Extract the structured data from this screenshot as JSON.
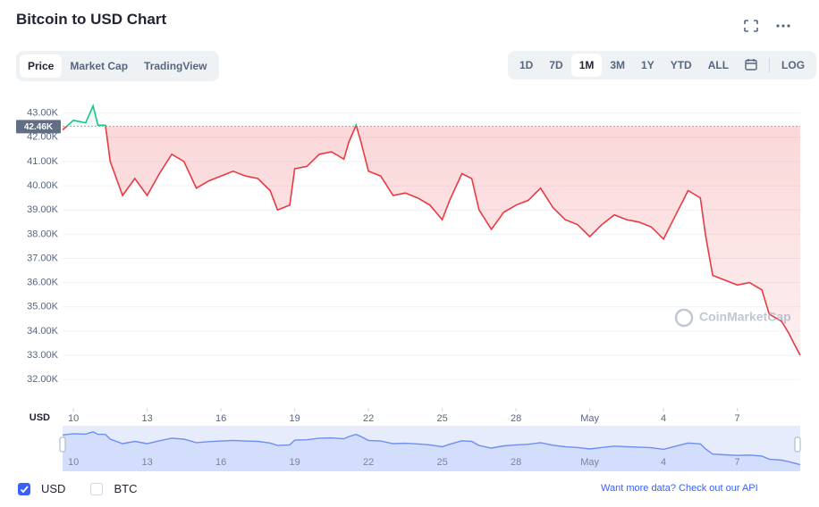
{
  "header": {
    "title": "Bitcoin to USD Chart"
  },
  "tabs": [
    "Price",
    "Market Cap",
    "TradingView"
  ],
  "active_tab": 0,
  "ranges": [
    "1D",
    "7D",
    "1M",
    "3M",
    "1Y",
    "YTD",
    "ALL"
  ],
  "active_range": 2,
  "log_label": "LOG",
  "chart_data": {
    "type": "line",
    "x_axis_label": "USD",
    "watermark": "CoinMarketCap",
    "x": [
      9.56,
      10,
      10.5,
      10.8,
      11,
      11.3,
      11.5,
      12,
      12.5,
      13,
      13.5,
      14,
      14.5,
      15,
      15.5,
      16,
      16.5,
      17,
      17.5,
      18,
      18.3,
      18.8,
      19,
      19.5,
      20,
      20.5,
      21,
      21.2,
      21.5,
      21.7,
      22,
      22.5,
      23,
      23.5,
      24,
      24.5,
      25,
      25.3,
      25.8,
      26.2,
      26.5,
      27,
      27.5,
      28,
      28.5,
      29,
      29.5,
      30,
      30.5,
      31,
      31.5,
      32,
      32.5,
      33,
      33.5,
      34,
      34.5,
      35,
      35.5,
      35.7,
      36,
      36.5,
      37,
      37.5,
      38,
      38.3,
      38.8,
      39.1,
      39.3,
      39.56
    ],
    "values": [
      42300,
      42700,
      42600,
      43300,
      42500,
      42500,
      41000,
      39600,
      40300,
      39600,
      40500,
      41300,
      41000,
      39900,
      40200,
      40400,
      40600,
      40400,
      40300,
      39800,
      39000,
      39200,
      40700,
      40800,
      41300,
      41400,
      41100,
      41800,
      42500,
      41800,
      40600,
      40400,
      39600,
      39700,
      39500,
      39200,
      38600,
      39400,
      40500,
      40300,
      39000,
      38200,
      38900,
      39200,
      39400,
      39900,
      39100,
      38600,
      38400,
      37900,
      38400,
      38800,
      38600,
      38500,
      38300,
      37800,
      38800,
      39800,
      39500,
      38000,
      36300,
      36100,
      35900,
      36000,
      35700,
      34700,
      34400,
      33900,
      33500,
      33000
    ],
    "above_color": "#16c784",
    "below_color": "#ea3943",
    "navigator_color": "#6f8ff0",
    "reference": {
      "value": 42460,
      "label": "42.46K"
    },
    "ylim": [
      30900,
      43800
    ],
    "yticks": [
      {
        "value": 32000,
        "label": "32.00K"
      },
      {
        "value": 33000,
        "label": "33.00K"
      },
      {
        "value": 34000,
        "label": "34.00K"
      },
      {
        "value": 35000,
        "label": "35.00K"
      },
      {
        "value": 36000,
        "label": "36.00K"
      },
      {
        "value": 37000,
        "label": "37.00K"
      },
      {
        "value": 38000,
        "label": "38.00K"
      },
      {
        "value": 39000,
        "label": "39.00K"
      },
      {
        "value": 40000,
        "label": "40.00K"
      },
      {
        "value": 41000,
        "label": "41.00K"
      },
      {
        "value": 42000,
        "label": "42.00K"
      },
      {
        "value": 43000,
        "label": "43.00K"
      }
    ],
    "xlim": [
      9.56,
      39.56
    ],
    "xticks": [
      10,
      13,
      16,
      19,
      22,
      25,
      28,
      {
        "value": 31,
        "label": "May"
      },
      {
        "value": 34,
        "label": "4"
      },
      {
        "value": 37,
        "label": "7"
      }
    ],
    "grid": true,
    "toggles": [
      {
        "name": "USD",
        "checked": true
      },
      {
        "name": "BTC",
        "checked": false
      }
    ]
  },
  "footer": "Want more data? Check out our API"
}
